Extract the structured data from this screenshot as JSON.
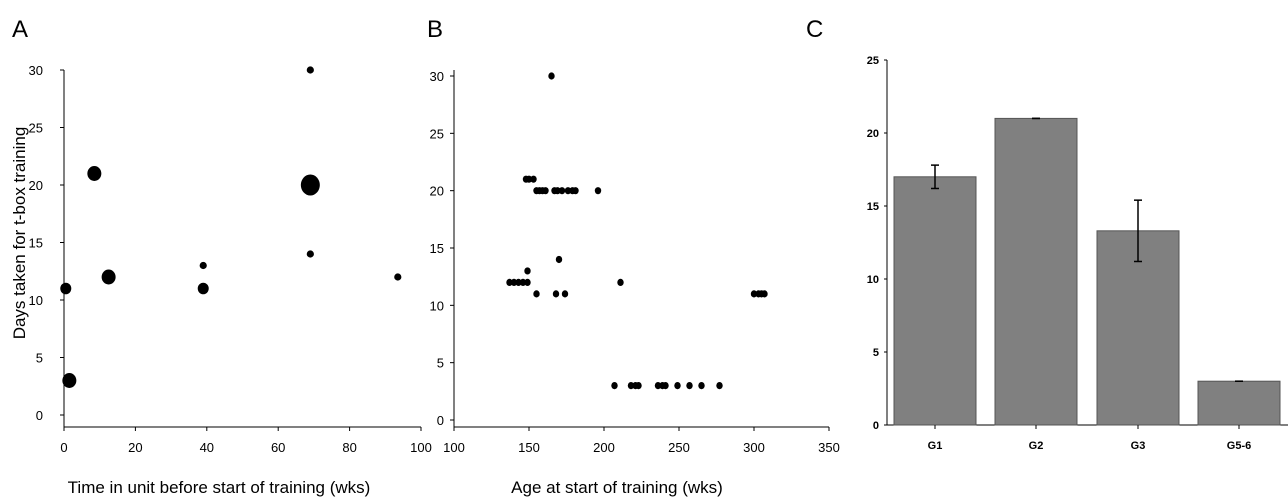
{
  "chart_data": [
    {
      "panel": "A",
      "type": "scatter",
      "xlabel": "Time in unit before start of training (wks)",
      "ylabel": "Days taken for t-box training",
      "xlim": [
        0,
        100
      ],
      "ylim": [
        0,
        30
      ],
      "xticks": [
        0,
        20,
        40,
        60,
        80,
        100
      ],
      "yticks": [
        0,
        5,
        10,
        15,
        20,
        25,
        30
      ],
      "grid": false,
      "note_marker_size": "marker size varies (larger = more animals)",
      "points": [
        {
          "x": 0.5,
          "y": 11,
          "size": 1
        },
        {
          "x": 1.5,
          "y": 3,
          "size": 2
        },
        {
          "x": 8.5,
          "y": 21,
          "size": 2
        },
        {
          "x": 12.5,
          "y": 12,
          "size": 2
        },
        {
          "x": 39,
          "y": 13,
          "size": 0
        },
        {
          "x": 39,
          "y": 11,
          "size": 1
        },
        {
          "x": 69,
          "y": 30,
          "size": 0
        },
        {
          "x": 69,
          "y": 20,
          "size": 3
        },
        {
          "x": 69,
          "y": 14,
          "size": 0
        },
        {
          "x": 93.5,
          "y": 12,
          "size": 0
        }
      ]
    },
    {
      "panel": "B",
      "type": "scatter",
      "xlabel": "Age at start of training (wks)",
      "ylabel": "",
      "xlim": [
        100,
        350
      ],
      "ylim": [
        0,
        30
      ],
      "xticks": [
        100,
        150,
        200,
        250,
        300,
        350
      ],
      "yticks": [
        0,
        5,
        10,
        15,
        20,
        25,
        30
      ],
      "grid": false,
      "points": [
        {
          "x": 137,
          "y": 12
        },
        {
          "x": 140,
          "y": 12
        },
        {
          "x": 143,
          "y": 12
        },
        {
          "x": 146,
          "y": 12
        },
        {
          "x": 149,
          "y": 12
        },
        {
          "x": 149,
          "y": 13
        },
        {
          "x": 148,
          "y": 21
        },
        {
          "x": 150,
          "y": 21
        },
        {
          "x": 153,
          "y": 21
        },
        {
          "x": 155,
          "y": 20
        },
        {
          "x": 157,
          "y": 20
        },
        {
          "x": 159,
          "y": 20
        },
        {
          "x": 161,
          "y": 20
        },
        {
          "x": 167,
          "y": 20
        },
        {
          "x": 169,
          "y": 20
        },
        {
          "x": 172,
          "y": 20
        },
        {
          "x": 176,
          "y": 20
        },
        {
          "x": 179,
          "y": 20
        },
        {
          "x": 181,
          "y": 20
        },
        {
          "x": 196,
          "y": 20
        },
        {
          "x": 165,
          "y": 30
        },
        {
          "x": 170,
          "y": 14
        },
        {
          "x": 155,
          "y": 11
        },
        {
          "x": 168,
          "y": 11
        },
        {
          "x": 174,
          "y": 11
        },
        {
          "x": 211,
          "y": 12
        },
        {
          "x": 207,
          "y": 3
        },
        {
          "x": 218,
          "y": 3
        },
        {
          "x": 221,
          "y": 3
        },
        {
          "x": 223,
          "y": 3
        },
        {
          "x": 236,
          "y": 3
        },
        {
          "x": 239,
          "y": 3
        },
        {
          "x": 241,
          "y": 3
        },
        {
          "x": 249,
          "y": 3
        },
        {
          "x": 257,
          "y": 3
        },
        {
          "x": 265,
          "y": 3
        },
        {
          "x": 277,
          "y": 3
        },
        {
          "x": 300,
          "y": 11
        },
        {
          "x": 303,
          "y": 11
        },
        {
          "x": 305,
          "y": 11
        },
        {
          "x": 307,
          "y": 11
        }
      ]
    },
    {
      "panel": "C",
      "type": "bar",
      "categories": [
        "G1",
        "G2",
        "G3",
        "G5-6"
      ],
      "values": [
        17,
        21,
        13.3,
        3
      ],
      "errors": [
        0.8,
        0,
        2.1,
        0
      ],
      "ylim": [
        0,
        25
      ],
      "yticks": [
        0,
        5,
        10,
        15,
        20,
        25
      ],
      "xlabel": "",
      "ylabel": "",
      "bar_color": "#808080",
      "grid": false
    }
  ]
}
